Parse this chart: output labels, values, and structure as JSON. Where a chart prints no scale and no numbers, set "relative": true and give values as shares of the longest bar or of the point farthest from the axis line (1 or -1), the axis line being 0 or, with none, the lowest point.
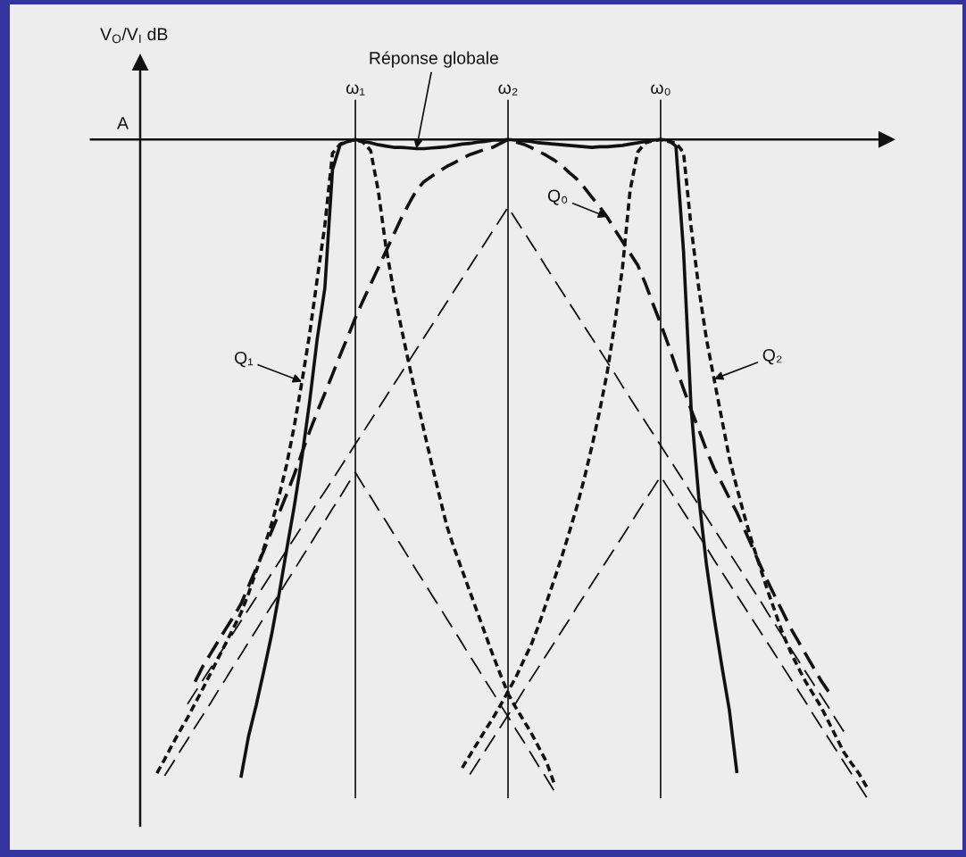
{
  "chart_data": {
    "type": "line",
    "relative": true,
    "ylabel": "V$_{O}$/V$_{I}$ dB",
    "tick_labels": "x",
    "grid": "x",
    "categories": [
      null,
      null,
      null,
      null,
      null,
      null,
      null,
      null,
      null,
      null,
      null,
      null,
      null,
      null,
      null,
      null,
      null,
      null,
      null,
      null,
      null,
      null,
      null,
      null,
      null,
      null,
      "ω₁",
      null,
      null,
      null,
      null,
      null,
      null,
      null,
      null,
      null,
      null,
      null,
      null,
      null,
      null,
      null,
      null,
      null,
      null,
      null,
      "ω₂",
      null,
      null,
      null,
      null,
      null,
      null,
      null,
      null,
      null,
      null,
      null,
      null,
      null,
      null,
      null,
      null,
      null,
      null,
      null,
      "ω₀",
      null,
      null,
      null,
      null,
      null,
      null,
      null,
      null,
      null,
      null,
      null,
      null,
      null,
      null,
      null,
      null,
      null,
      null,
      null,
      null,
      null,
      null,
      null,
      null,
      null,
      null,
      null
    ],
    "annotations": [
      "A"
    ],
    "series": [
      {
        "name": "Réponse globale",
        "color": "#111111",
        "line_style": "solid",
        "values": [
          null,
          null,
          null,
          null,
          null,
          null,
          null,
          null,
          null,
          null,
          null,
          -0.97,
          -0.907,
          -0.86,
          -0.808,
          -0.754,
          -0.691,
          -0.623,
          -0.557,
          -0.483,
          -0.399,
          -0.303,
          -0.226,
          -0.046,
          -0.008,
          -0.003,
          0,
          -0.003,
          -0.005,
          -0.008,
          -0.01,
          -0.012,
          -0.012,
          -0.013,
          -0.014,
          -0.014,
          -0.013,
          -0.012,
          -0.011,
          -0.009,
          -0.007,
          -0.006,
          -0.004,
          -0.003,
          -0.001,
          -0.001,
          0,
          -0.001,
          -0.002,
          -0.003,
          -0.005,
          -0.006,
          -0.007,
          -0.008,
          -0.009,
          -0.01,
          -0.011,
          -0.012,
          -0.011,
          -0.011,
          -0.01,
          -0.009,
          -0.007,
          -0.005,
          -0.003,
          -0.001,
          0,
          -0.001,
          -0.01,
          -0.17,
          -0.41,
          -0.544,
          -0.646,
          -0.726,
          -0.799,
          -0.867,
          -0.963,
          null,
          null,
          null,
          null,
          null,
          null,
          null,
          null,
          null,
          null,
          null,
          null,
          null,
          null,
          null,
          null,
          null
        ]
      },
      {
        "name": "Q₁",
        "color": "#111111",
        "line_style": "dotted",
        "values": [
          -0.963,
          -0.942,
          -0.92,
          -0.899,
          -0.879,
          -0.857,
          -0.835,
          -0.812,
          -0.789,
          -0.766,
          -0.743,
          -0.72,
          -0.69,
          -0.656,
          -0.621,
          -0.585,
          -0.542,
          -0.494,
          -0.435,
          -0.368,
          -0.296,
          -0.212,
          -0.13,
          -0.021,
          -0.007,
          -0.003,
          0,
          -0.004,
          -0.017,
          -0.078,
          -0.163,
          -0.229,
          -0.285,
          -0.34,
          -0.392,
          -0.443,
          -0.493,
          -0.541,
          -0.588,
          -0.623,
          -0.655,
          -0.687,
          -0.719,
          -0.751,
          -0.783,
          -0.813,
          -0.842,
          -0.863,
          -0.882,
          -0.901,
          -0.923,
          -0.945,
          -0.977,
          null,
          null,
          null,
          null,
          null,
          null,
          null,
          null,
          null,
          null,
          null,
          null,
          null,
          null,
          null,
          null,
          null,
          null,
          null,
          null,
          null,
          null,
          null,
          null,
          null,
          null,
          null,
          null,
          null,
          null,
          null,
          null,
          null,
          null,
          null,
          null,
          null,
          null,
          null,
          null,
          null
        ]
      },
      {
        "name": "Q₂",
        "color": "#111111",
        "line_style": "dotted",
        "values": [
          null,
          null,
          null,
          null,
          null,
          null,
          null,
          null,
          null,
          null,
          null,
          null,
          null,
          null,
          null,
          null,
          null,
          null,
          null,
          null,
          null,
          null,
          null,
          null,
          null,
          null,
          null,
          null,
          null,
          null,
          null,
          null,
          null,
          null,
          null,
          null,
          null,
          null,
          null,
          null,
          -0.955,
          -0.936,
          -0.917,
          -0.898,
          -0.88,
          -0.86,
          -0.839,
          -0.818,
          -0.793,
          -0.769,
          -0.739,
          -0.705,
          -0.671,
          -0.636,
          -0.598,
          -0.559,
          -0.515,
          -0.466,
          -0.413,
          -0.354,
          -0.279,
          -0.195,
          -0.077,
          -0.019,
          -0.005,
          -0.002,
          0,
          -0.003,
          -0.005,
          -0.02,
          -0.134,
          -0.226,
          -0.303,
          -0.364,
          -0.424,
          -0.484,
          -0.53,
          -0.573,
          -0.613,
          -0.649,
          -0.685,
          -0.718,
          -0.751,
          -0.778,
          -0.802,
          -0.824,
          -0.843,
          -0.862,
          -0.885,
          -0.908,
          -0.931,
          -0.948,
          -0.964,
          -0.984
        ]
      },
      {
        "name": "Q₀",
        "color": "#111111",
        "line_style": "dashed",
        "values": [
          null,
          null,
          null,
          null,
          null,
          -0.824,
          -0.801,
          -0.782,
          -0.763,
          -0.744,
          -0.726,
          -0.706,
          -0.679,
          -0.652,
          -0.625,
          -0.596,
          -0.568,
          -0.539,
          -0.509,
          -0.476,
          -0.444,
          -0.414,
          -0.386,
          -0.357,
          -0.328,
          -0.3,
          -0.271,
          -0.245,
          -0.22,
          -0.195,
          -0.17,
          -0.145,
          -0.12,
          -0.098,
          -0.077,
          -0.064,
          -0.056,
          -0.048,
          -0.041,
          -0.035,
          -0.029,
          -0.023,
          -0.019,
          -0.015,
          -0.012,
          -0.006,
          0,
          -0.004,
          -0.007,
          -0.012,
          -0.018,
          -0.024,
          -0.031,
          -0.039,
          -0.05,
          -0.06,
          -0.073,
          -0.088,
          -0.102,
          -0.118,
          -0.137,
          -0.155,
          -0.173,
          -0.191,
          -0.219,
          -0.25,
          -0.28,
          -0.312,
          -0.346,
          -0.379,
          -0.411,
          -0.441,
          -0.472,
          -0.5,
          -0.522,
          -0.545,
          -0.567,
          -0.593,
          -0.619,
          -0.646,
          -0.671,
          -0.695,
          -0.718,
          -0.742,
          -0.762,
          -0.782,
          -0.802,
          -0.822,
          -0.839,
          null,
          null,
          null,
          null,
          null
        ]
      },
      {
        "color": "#111111",
        "line_style": "dashed",
        "values": [
          null,
          -0.967,
          -0.949,
          -0.93,
          -0.912,
          -0.893,
          -0.875,
          -0.857,
          -0.838,
          -0.82,
          -0.801,
          -0.783,
          -0.764,
          -0.746,
          -0.727,
          -0.709,
          -0.691,
          -0.672,
          -0.654,
          -0.635,
          -0.617,
          -0.598,
          -0.58,
          -0.561,
          -0.543,
          -0.524,
          -0.506,
          -0.525,
          -0.543,
          -0.562,
          -0.58,
          -0.599,
          -0.617,
          -0.636,
          -0.655,
          -0.673,
          -0.692,
          -0.71,
          -0.729,
          -0.747,
          -0.766,
          -0.785,
          -0.803,
          -0.822,
          -0.84,
          -0.859,
          -0.877,
          -0.896,
          -0.914,
          -0.933,
          -0.952,
          -0.97,
          -0.989,
          null,
          null,
          null,
          null,
          null,
          null,
          null,
          null,
          null,
          null,
          null,
          null,
          null,
          null,
          null,
          null,
          null,
          null,
          null,
          null,
          null,
          null,
          null,
          null,
          null,
          null,
          null,
          null,
          null,
          null,
          null,
          null,
          null,
          null,
          null,
          null,
          null,
          null,
          null,
          null,
          null
        ]
      },
      {
        "color": "#111111",
        "line_style": "dashed",
        "values": [
          null,
          null,
          null,
          null,
          -0.858,
          -0.84,
          -0.822,
          -0.804,
          -0.786,
          -0.768,
          -0.75,
          -0.732,
          -0.714,
          -0.696,
          -0.678,
          -0.66,
          -0.642,
          -0.624,
          -0.606,
          -0.588,
          -0.57,
          -0.552,
          -0.535,
          -0.517,
          -0.499,
          -0.481,
          -0.463,
          -0.445,
          -0.427,
          -0.409,
          -0.391,
          -0.373,
          -0.355,
          -0.337,
          -0.319,
          -0.301,
          -0.283,
          -0.265,
          -0.247,
          -0.229,
          -0.211,
          -0.193,
          -0.175,
          -0.157,
          -0.139,
          -0.121,
          -0.103,
          -0.121,
          -0.139,
          -0.157,
          -0.175,
          -0.194,
          -0.212,
          -0.23,
          -0.248,
          -0.266,
          -0.284,
          -0.302,
          -0.32,
          -0.338,
          -0.356,
          -0.375,
          -0.393,
          -0.411,
          -0.429,
          -0.447,
          -0.465,
          -0.483,
          -0.501,
          -0.519,
          -0.538,
          -0.556,
          -0.574,
          -0.592,
          -0.61,
          -0.628,
          -0.646,
          -0.664,
          -0.682,
          -0.7,
          -0.719,
          -0.737,
          -0.755,
          -0.773,
          -0.791,
          -0.809,
          -0.827,
          -0.845,
          -0.863,
          -0.882,
          -0.9,
          null,
          null,
          null
        ]
      },
      {
        "color": "#111111",
        "line_style": "dashed",
        "values": [
          null,
          null,
          null,
          null,
          null,
          null,
          null,
          null,
          null,
          null,
          null,
          null,
          null,
          null,
          null,
          null,
          null,
          null,
          null,
          null,
          null,
          null,
          null,
          null,
          null,
          null,
          null,
          null,
          null,
          null,
          null,
          null,
          null,
          null,
          null,
          null,
          null,
          null,
          null,
          null,
          null,
          -0.965,
          -0.947,
          -0.929,
          -0.911,
          -0.893,
          -0.875,
          -0.857,
          -0.838,
          -0.82,
          -0.802,
          -0.784,
          -0.766,
          -0.748,
          -0.73,
          -0.711,
          -0.693,
          -0.675,
          -0.657,
          -0.639,
          -0.621,
          -0.603,
          -0.585,
          -0.566,
          -0.548,
          -0.53,
          -0.512,
          -0.53,
          -0.548,
          -0.566,
          -0.584,
          -0.602,
          -0.62,
          -0.639,
          -0.657,
          -0.675,
          -0.693,
          -0.711,
          -0.729,
          -0.747,
          -0.765,
          -0.783,
          -0.801,
          -0.819,
          -0.837,
          -0.855,
          -0.874,
          -0.892,
          -0.91,
          -0.928,
          -0.946,
          -0.964,
          -0.982,
          -1.0
        ]
      }
    ]
  }
}
